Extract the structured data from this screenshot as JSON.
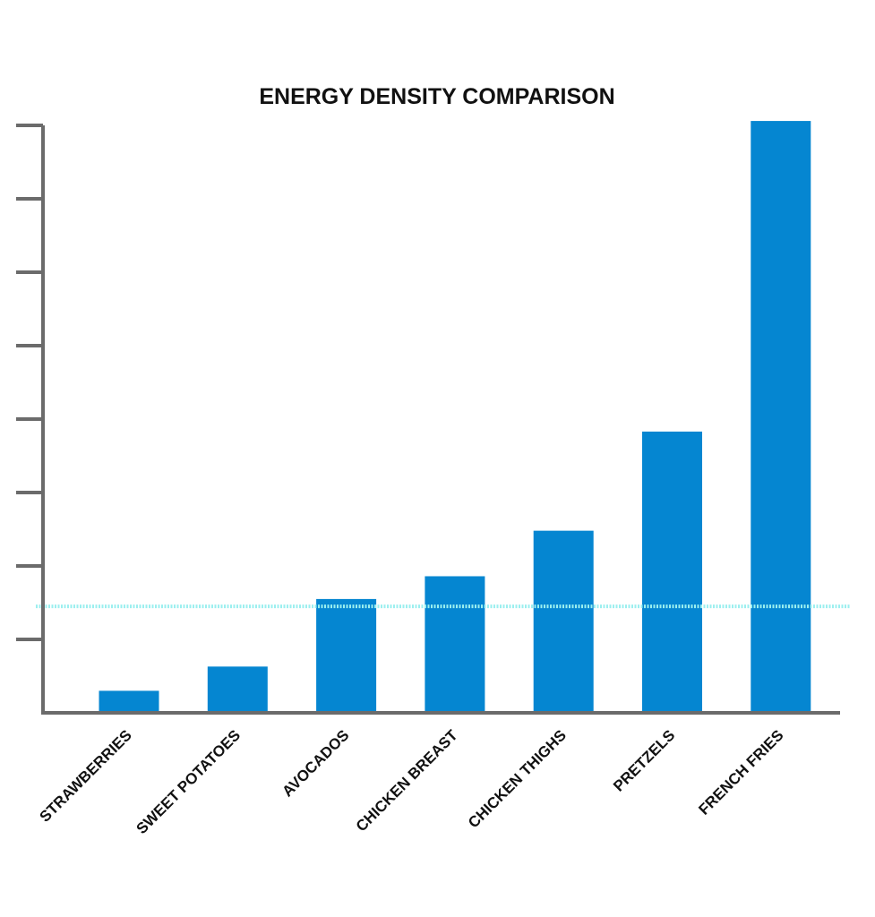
{
  "chart_data": {
    "type": "bar",
    "title": "ENERGY DENSITY COMPARISON",
    "categories": [
      "STRAWBERRIES",
      "SWEET POTATOES",
      "AVOCADOS",
      "CHICKEN BREAST",
      "CHICKEN THIGHS",
      "PRETZELS",
      "FRENCH FRIES"
    ],
    "values": [
      0.3,
      0.63,
      1.55,
      1.86,
      2.48,
      3.83,
      8.06
    ],
    "reference_line": 1.45,
    "ylim": [
      0,
      8
    ],
    "y_ticks": [
      0,
      1,
      2,
      3,
      4,
      5,
      6,
      7,
      8
    ],
    "y_tick_labels_shown": false,
    "grid": false,
    "legend": "none",
    "colors": {
      "bar": "#0586d1",
      "axis": "#6b6b6b",
      "reference_line": "#9befef",
      "text": "#111111"
    }
  }
}
